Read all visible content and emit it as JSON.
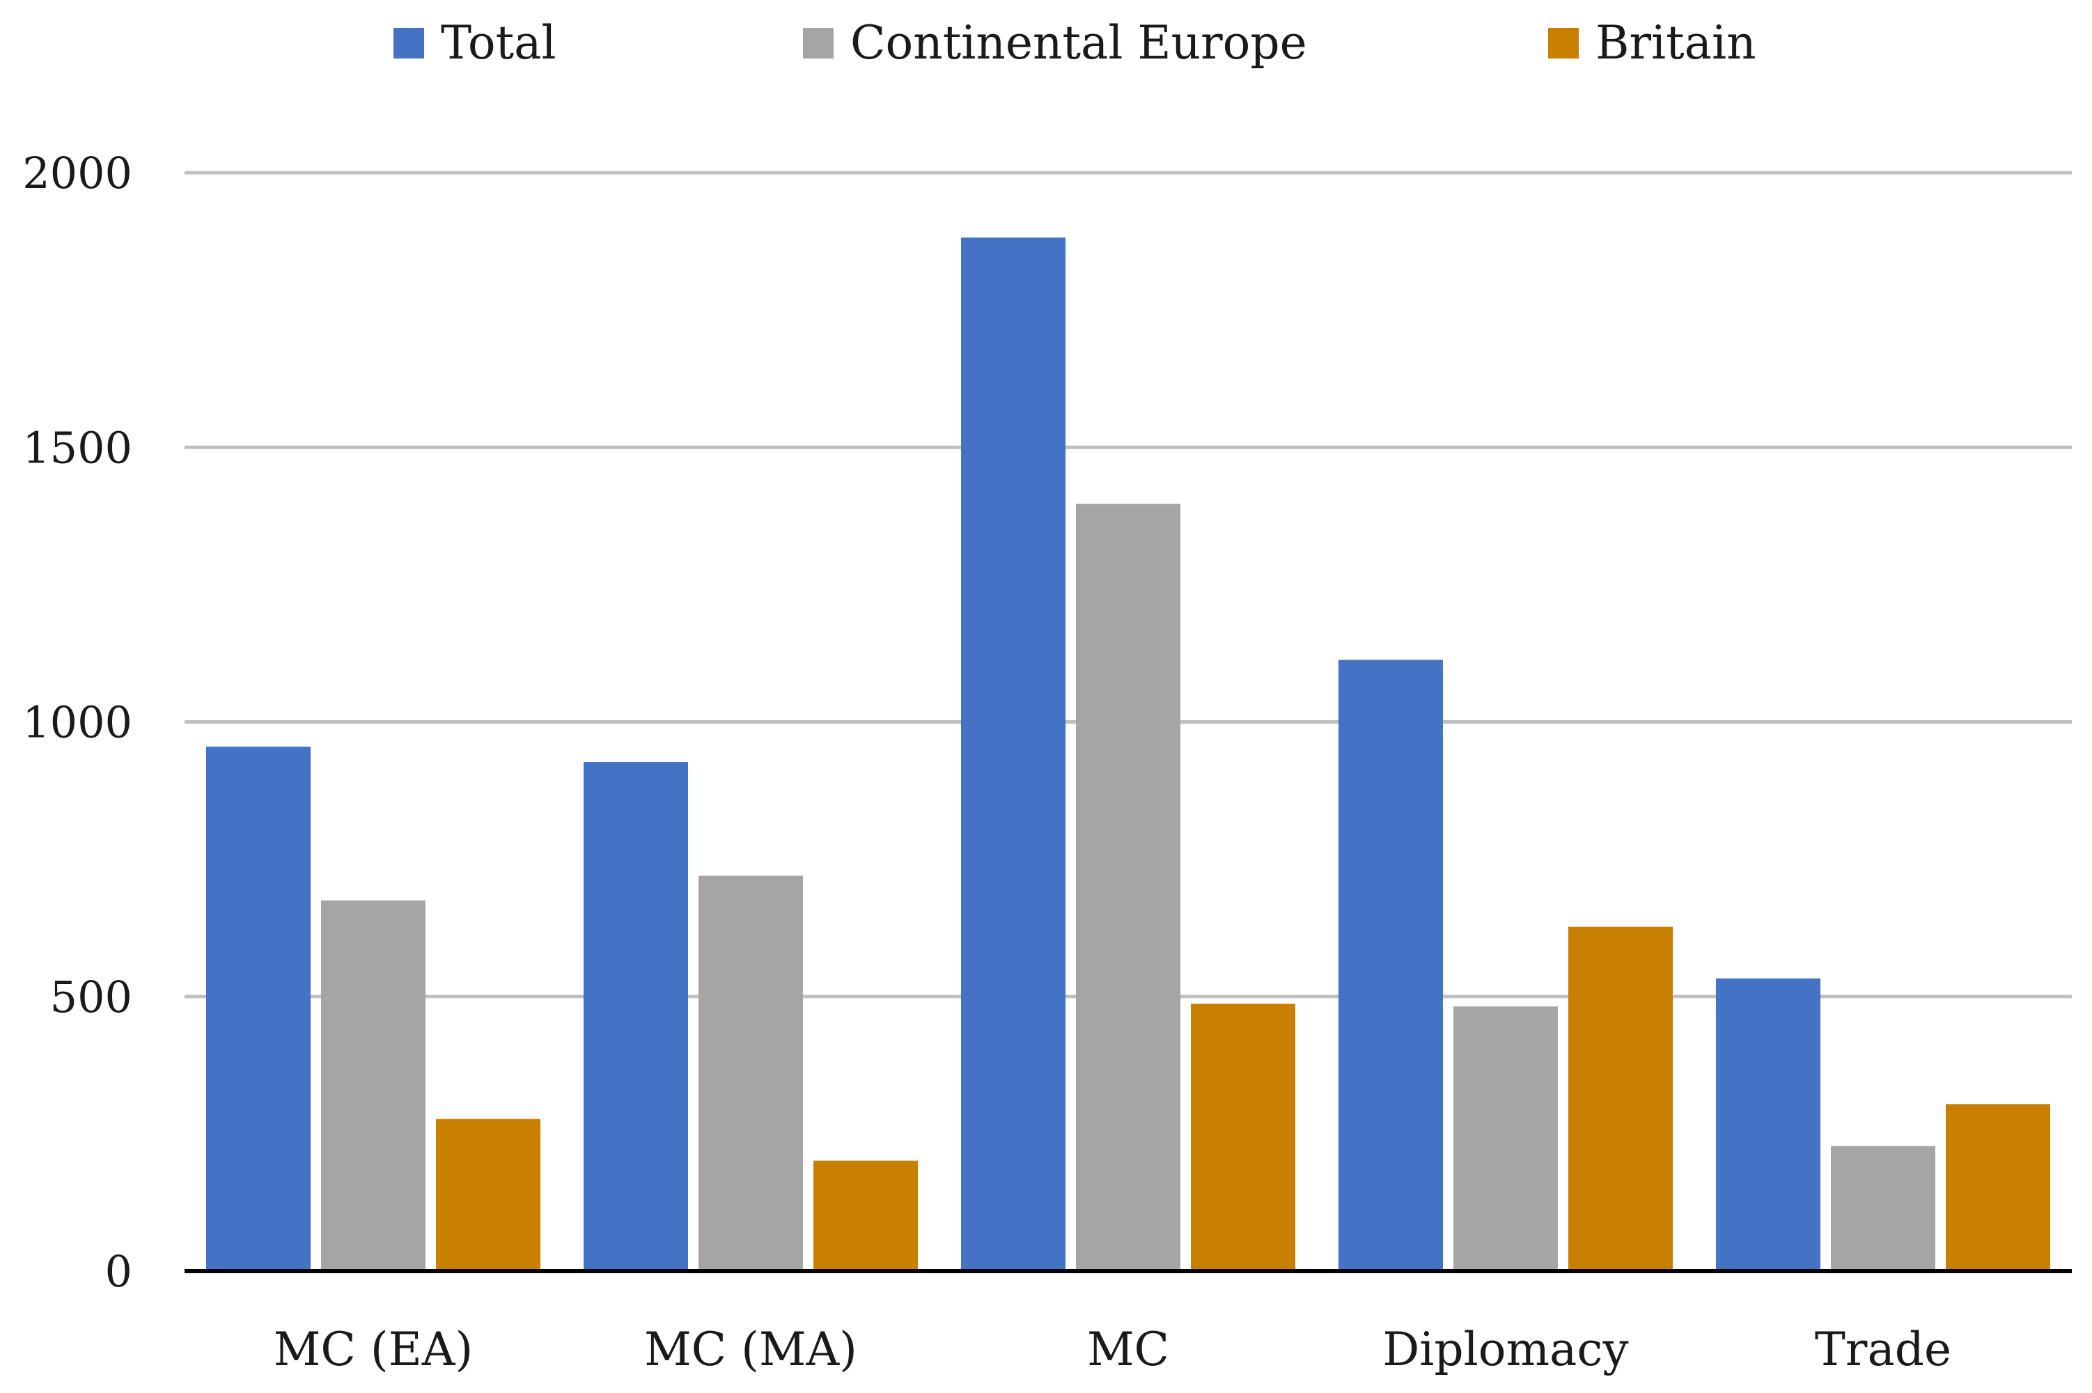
{
  "chart_data": {
    "type": "bar",
    "title": "",
    "xlabel": "",
    "ylabel": "",
    "ylim": [
      0,
      2000
    ],
    "yticks": [
      0,
      500,
      1000,
      1500,
      2000
    ],
    "yticks_text": [
      "0",
      "500",
      "1000",
      "1500",
      "2000"
    ],
    "grid": true,
    "legend_position": "top",
    "categories": [
      "MC (EA)",
      "MC (MA)",
      "MC",
      "Diplomacy",
      "Trade"
    ],
    "series": [
      {
        "name": "Total",
        "color": "#4472C4",
        "values": [
          955,
          927,
          1882,
          1113,
          533
        ]
      },
      {
        "name": "Continental Europe",
        "color": "#A5A5A5",
        "values": [
          675,
          720,
          1397,
          482,
          228
        ]
      },
      {
        "name": "Britain",
        "color": "#C97F00",
        "values": [
          277,
          201,
          487,
          627,
          304
        ]
      }
    ],
    "gridline_color": "#BFBFBF",
    "axis_color": "#000000"
  }
}
